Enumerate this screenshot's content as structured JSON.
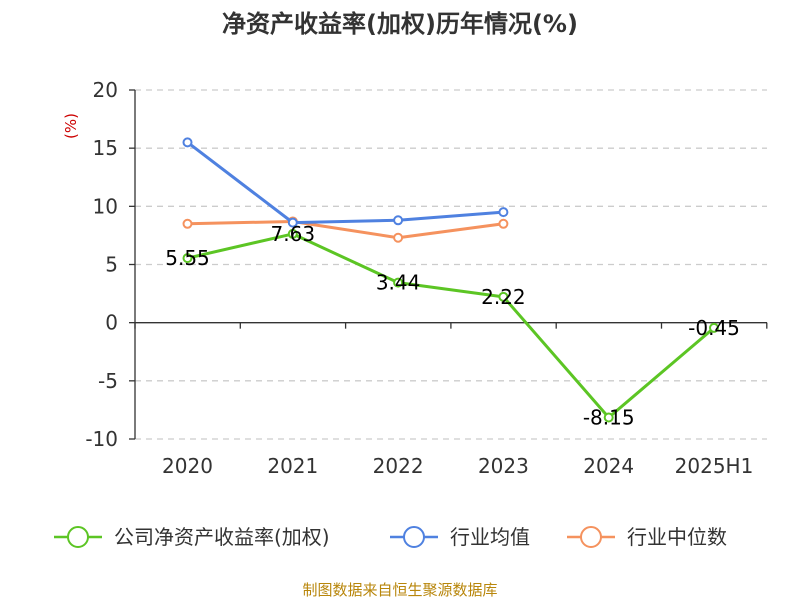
{
  "chart_data": {
    "type": "line",
    "title": "净资产收益率(加权)历年情况(%)",
    "ylabel": "(%)",
    "categories": [
      "2020",
      "2021",
      "2022",
      "2023",
      "2024",
      "2025H1"
    ],
    "ylim": [
      -10,
      20
    ],
    "yticks": [
      20,
      15,
      10,
      5,
      0,
      -5,
      -10
    ],
    "grid": true,
    "legend_position": "bottom",
    "series": [
      {
        "name": "公司净资产收益率(加权)",
        "color": "#5cc524",
        "values": [
          5.55,
          7.63,
          3.44,
          2.22,
          -8.15,
          -0.45
        ],
        "labels": [
          "5.55",
          "7.63",
          "3.44",
          "2.22",
          "-8.15",
          "-0.45"
        ]
      },
      {
        "name": "行业均值",
        "color": "#4f81e0",
        "values": [
          15.5,
          8.6,
          8.8,
          9.5,
          null,
          null
        ]
      },
      {
        "name": "行业中位数",
        "color": "#f5925e",
        "values": [
          8.5,
          8.7,
          7.3,
          8.5,
          null,
          null
        ]
      }
    ],
    "source": "制图数据来自恒生聚源数据库"
  }
}
